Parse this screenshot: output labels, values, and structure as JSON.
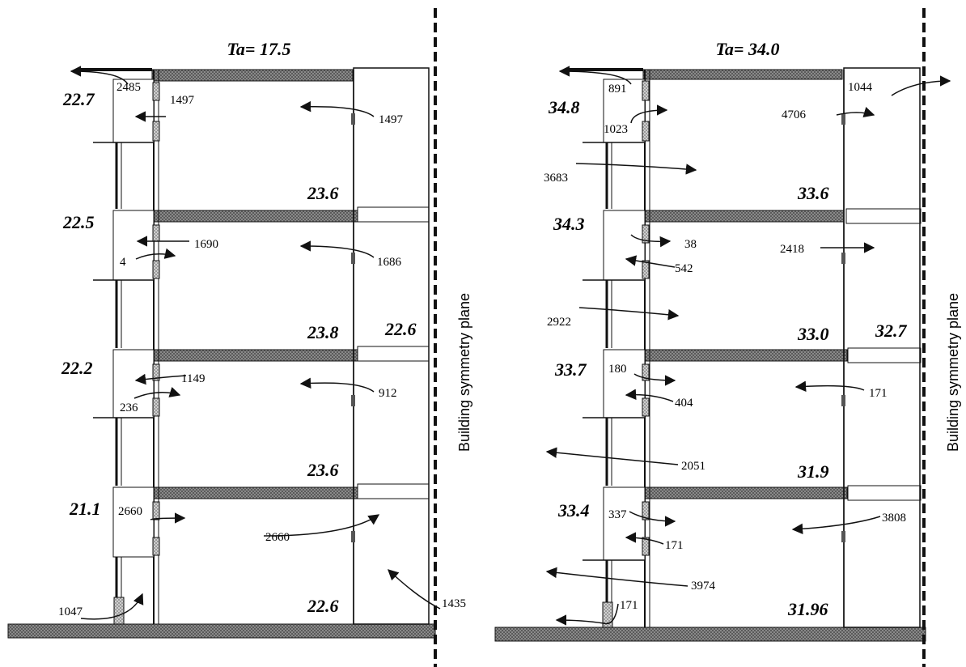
{
  "panels": [
    {
      "title": "Ta= 17.5",
      "temps": [
        "22.7",
        "23.6",
        "22.5",
        "23.8",
        "22.6",
        "22.2",
        "23.6",
        "21.1",
        "22.6"
      ],
      "flows": [
        "2485",
        "1497",
        "1497",
        "1690",
        "4",
        "1686",
        "1149",
        "236",
        "912",
        "2660",
        "2660",
        "1047",
        "1435"
      ],
      "symmetry_label": "Building symmetry plane"
    },
    {
      "title": "Ta= 34.0",
      "temps": [
        "34.8",
        "33.6",
        "34.3",
        "33.0",
        "32.7",
        "33.7",
        "31.9",
        "33.4",
        "31.96"
      ],
      "flows": [
        "891",
        "1023",
        "1044",
        "4706",
        "3683",
        "38",
        "542",
        "2418",
        "2922",
        "180",
        "404",
        "171",
        "2051",
        "337",
        "171",
        "3808",
        "3974",
        "171"
      ],
      "symmetry_label": "Building symmetry plane"
    }
  ]
}
